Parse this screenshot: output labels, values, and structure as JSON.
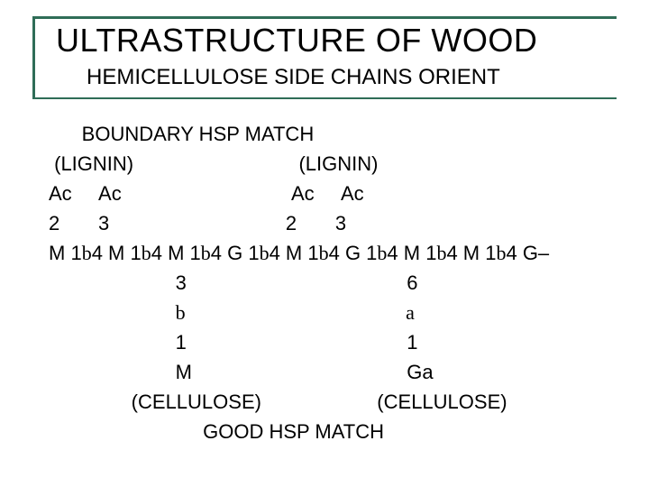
{
  "colors": {
    "accent": "#2f6d57",
    "text": "#000000",
    "background": "#ffffff"
  },
  "typography": {
    "title_fontsize": 36,
    "subtitle_fontsize": 24,
    "body_fontsize": 22,
    "body_lineheight": 33,
    "font_family": "Arial"
  },
  "title": "ULTRASTRUCTURE OF WOOD",
  "subtitle": "HEMICELLULOSE SIDE CHAINS ORIENT",
  "lines": {
    "l1": "      BOUNDARY HSP MATCH",
    "l2": " (LIGNIN)                              (LIGNIN)",
    "l3": "Ac     Ac                               Ac     Ac",
    "l4": "2       3                                2       3",
    "l5a": "M 1",
    "l5b": "4 M 1",
    "l5c": "4 M 1",
    "l5d": "4 G 1",
    "l5e": "4 M 1",
    "l5f": "4 G 1",
    "l5g": "4 M 1",
    "l5h": "4 M 1",
    "l5i": "4 G–",
    "l6": "                       3                                        6",
    "l7b_left": "                       ",
    "l7b_right": "                                        ",
    "l8": "                       1                                        1",
    "l9": "                       M                                       Ga",
    "l10": "               (CELLULOSE)                     (CELLULOSE)",
    "l11": "                            GOOD HSP MATCH"
  },
  "greek": {
    "beta": "b",
    "alpha": "a"
  }
}
